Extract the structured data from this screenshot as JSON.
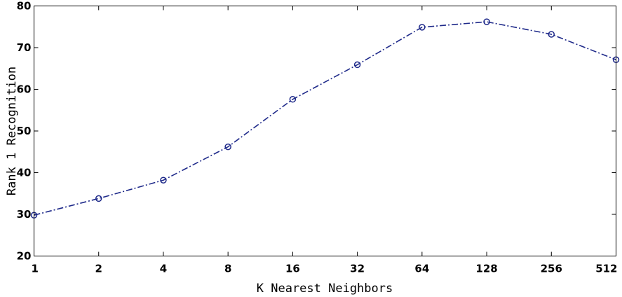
{
  "chart_data": {
    "type": "line",
    "categories": [
      "1",
      "2",
      "4",
      "8",
      "16",
      "32",
      "64",
      "128",
      "256",
      "512"
    ],
    "series": [
      {
        "values": [
          29.8,
          33.8,
          38.2,
          46.2,
          57.6,
          65.9,
          74.9,
          76.2,
          73.2,
          67.1
        ],
        "color": "#1f2a8a",
        "line_style": "dash-dot",
        "marker": "circle"
      }
    ],
    "xlabel": "K Nearest Neighbors",
    "ylabel": "Rank 1 Recognition",
    "ylim": [
      20,
      80
    ],
    "yticks": [
      20,
      30,
      40,
      50,
      60,
      70,
      80
    ],
    "grid": false,
    "legend": "none"
  }
}
